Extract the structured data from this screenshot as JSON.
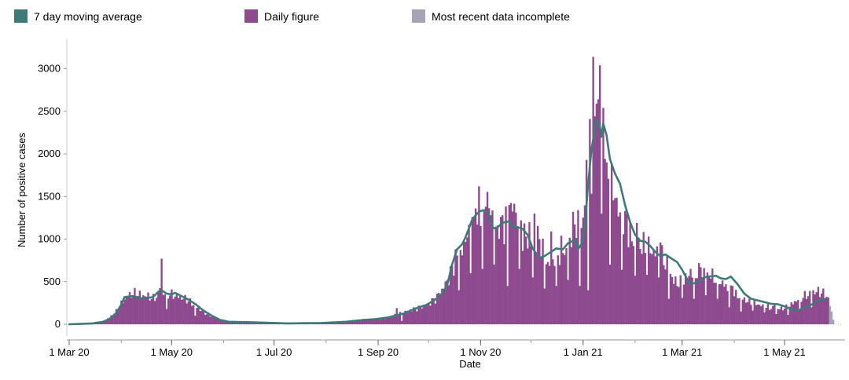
{
  "legend": {
    "items": [
      {
        "label": "7 day moving average",
        "color": "#3e7b78"
      },
      {
        "label": "Daily figure",
        "color": "#8e4a8e"
      },
      {
        "label": "Most recent data incomplete",
        "color": "#a7a4b3"
      }
    ]
  },
  "chart_data": {
    "type": "bar",
    "xlabel": "Date",
    "ylabel": "Number of positive cases",
    "ylim": [
      0,
      3300
    ],
    "yticks": [
      0,
      500,
      1000,
      1500,
      2000,
      2500,
      3000
    ],
    "xtick_labels": [
      "1 Mar 20",
      "1 May 20",
      "1 Jul 20",
      "1 Sep 20",
      "1 Nov 20",
      "1 Jan 21",
      "1 Mar 21",
      "1 May 21"
    ],
    "day_range": [
      0,
      455
    ],
    "incomplete_days": 3,
    "series": [
      {
        "name": "Daily figure",
        "keypoints": [
          [
            0,
            2
          ],
          [
            8,
            8
          ],
          [
            14,
            15
          ],
          [
            20,
            30
          ],
          [
            24,
            80
          ],
          [
            28,
            150
          ],
          [
            31,
            240
          ],
          [
            34,
            320
          ],
          [
            37,
            350
          ],
          [
            40,
            360
          ],
          [
            43,
            340
          ],
          [
            47,
            330
          ],
          [
            50,
            300
          ],
          [
            53,
            340
          ],
          [
            55,
            560
          ],
          [
            56,
            360
          ],
          [
            60,
            350
          ],
          [
            64,
            330
          ],
          [
            70,
            290
          ],
          [
            76,
            200
          ],
          [
            82,
            120
          ],
          [
            88,
            60
          ],
          [
            95,
            30
          ],
          [
            110,
            15
          ],
          [
            130,
            10
          ],
          [
            150,
            15
          ],
          [
            165,
            30
          ],
          [
            175,
            50
          ],
          [
            182,
            60
          ],
          [
            190,
            80
          ],
          [
            195,
            120
          ],
          [
            200,
            150
          ],
          [
            207,
            190
          ],
          [
            213,
            230
          ],
          [
            218,
            300
          ],
          [
            222,
            400
          ],
          [
            226,
            550
          ],
          [
            230,
            750
          ],
          [
            235,
            900
          ],
          [
            240,
            1100
          ],
          [
            244,
            1250
          ],
          [
            249,
            1350
          ],
          [
            254,
            1150
          ],
          [
            258,
            1100
          ],
          [
            262,
            1300
          ],
          [
            266,
            1400
          ],
          [
            270,
            1050
          ],
          [
            275,
            950
          ],
          [
            280,
            1000
          ],
          [
            285,
            700
          ],
          [
            289,
            800
          ],
          [
            295,
            850
          ],
          [
            300,
            950
          ],
          [
            305,
            1150
          ],
          [
            308,
            1500
          ],
          [
            311,
            1800
          ],
          [
            313,
            2500
          ],
          [
            315,
            2400
          ],
          [
            318,
            2300
          ],
          [
            321,
            1800
          ],
          [
            324,
            1500
          ],
          [
            328,
            1250
          ],
          [
            333,
            1050
          ],
          [
            338,
            950
          ],
          [
            343,
            900
          ],
          [
            348,
            850
          ],
          [
            352,
            800
          ],
          [
            356,
            700
          ],
          [
            360,
            500
          ],
          [
            364,
            480
          ],
          [
            368,
            550
          ],
          [
            373,
            600
          ],
          [
            378,
            600
          ],
          [
            383,
            560
          ],
          [
            388,
            500
          ],
          [
            393,
            400
          ],
          [
            398,
            330
          ],
          [
            403,
            280
          ],
          [
            408,
            250
          ],
          [
            413,
            210
          ],
          [
            418,
            190
          ],
          [
            423,
            180
          ],
          [
            428,
            200
          ],
          [
            433,
            280
          ],
          [
            438,
            330
          ],
          [
            443,
            380
          ],
          [
            447,
            380
          ],
          [
            450,
            350
          ],
          [
            452,
            300
          ],
          [
            455,
            60
          ]
        ],
        "spikes": [
          [
            55,
            770
          ],
          [
            195,
            190
          ],
          [
            225,
            520
          ],
          [
            230,
            880
          ],
          [
            237,
            1020
          ],
          [
            240,
            1260
          ],
          [
            242,
            1360
          ],
          [
            244,
            1620
          ],
          [
            246,
            1680
          ],
          [
            248,
            1380
          ],
          [
            251,
            1280
          ],
          [
            258,
            1280
          ],
          [
            262,
            1400
          ],
          [
            266,
            1310
          ],
          [
            269,
            1220
          ],
          [
            274,
            1200
          ],
          [
            277,
            1300
          ],
          [
            287,
            1090
          ],
          [
            293,
            1040
          ],
          [
            300,
            1320
          ],
          [
            303,
            1340
          ],
          [
            308,
            1930
          ],
          [
            310,
            2410
          ],
          [
            312,
            3140
          ],
          [
            314,
            2590
          ],
          [
            316,
            3040
          ],
          [
            318,
            2540
          ],
          [
            320,
            1900
          ],
          [
            325,
            1480
          ],
          [
            332,
            1300
          ],
          [
            338,
            1190
          ],
          [
            345,
            1030
          ],
          [
            352,
            960
          ],
          [
            370,
            650
          ],
          [
            376,
            670
          ],
          [
            386,
            630
          ],
          [
            395,
            450
          ],
          [
            405,
            300
          ],
          [
            420,
            240
          ],
          [
            440,
            330
          ],
          [
            449,
            420
          ]
        ],
        "dips": [
          [
            58,
            180
          ],
          [
            75,
            100
          ],
          [
            198,
            40
          ],
          [
            232,
            400
          ],
          [
            239,
            600
          ],
          [
            246,
            650
          ],
          [
            253,
            700
          ],
          [
            261,
            450
          ],
          [
            268,
            650
          ],
          [
            276,
            550
          ],
          [
            283,
            420
          ],
          [
            290,
            450
          ],
          [
            297,
            520
          ],
          [
            304,
            450
          ],
          [
            309,
            400
          ],
          [
            317,
            1300
          ],
          [
            322,
            700
          ],
          [
            329,
            640
          ],
          [
            337,
            570
          ],
          [
            344,
            580
          ],
          [
            351,
            550
          ],
          [
            357,
            300
          ],
          [
            365,
            310
          ],
          [
            372,
            300
          ],
          [
            379,
            340
          ],
          [
            386,
            300
          ],
          [
            393,
            200
          ],
          [
            400,
            150
          ],
          [
            407,
            160
          ],
          [
            414,
            140
          ],
          [
            421,
            120
          ],
          [
            428,
            110
          ],
          [
            435,
            170
          ],
          [
            442,
            200
          ]
        ]
      },
      {
        "name": "7 day moving average",
        "points": [
          [
            0,
            0
          ],
          [
            8,
            5
          ],
          [
            14,
            10
          ],
          [
            20,
            28
          ],
          [
            24,
            60
          ],
          [
            28,
            130
          ],
          [
            31,
            230
          ],
          [
            33,
            320
          ],
          [
            38,
            330
          ],
          [
            43,
            305
          ],
          [
            47,
            310
          ],
          [
            50,
            320
          ],
          [
            53,
            380
          ],
          [
            55,
            400
          ],
          [
            58,
            360
          ],
          [
            61,
            350
          ],
          [
            63,
            370
          ],
          [
            66,
            340
          ],
          [
            70,
            300
          ],
          [
            75,
            240
          ],
          [
            80,
            160
          ],
          [
            85,
            100
          ],
          [
            90,
            50
          ],
          [
            95,
            30
          ],
          [
            110,
            22
          ],
          [
            130,
            10
          ],
          [
            150,
            15
          ],
          [
            165,
            30
          ],
          [
            175,
            50
          ],
          [
            182,
            60
          ],
          [
            190,
            80
          ],
          [
            200,
            130
          ],
          [
            207,
            190
          ],
          [
            213,
            230
          ],
          [
            218,
            290
          ],
          [
            222,
            360
          ],
          [
            225,
            450
          ],
          [
            228,
            700
          ],
          [
            231,
            880
          ],
          [
            234,
            940
          ],
          [
            236,
            1020
          ],
          [
            240,
            1230
          ],
          [
            243,
            1300
          ],
          [
            245,
            1330
          ],
          [
            247,
            1340
          ],
          [
            250,
            1290
          ],
          [
            252,
            1140
          ],
          [
            254,
            1120
          ],
          [
            258,
            1190
          ],
          [
            262,
            1210
          ],
          [
            264,
            1140
          ],
          [
            267,
            1140
          ],
          [
            270,
            1120
          ],
          [
            273,
            1050
          ],
          [
            276,
            890
          ],
          [
            280,
            780
          ],
          [
            283,
            800
          ],
          [
            287,
            850
          ],
          [
            290,
            890
          ],
          [
            294,
            880
          ],
          [
            297,
            950
          ],
          [
            300,
            980
          ],
          [
            301,
            1000
          ],
          [
            303,
            880
          ],
          [
            305,
            940
          ],
          [
            307,
            1130
          ],
          [
            309,
            1640
          ],
          [
            311,
            2050
          ],
          [
            313,
            2280
          ],
          [
            314,
            2400
          ],
          [
            316,
            2320
          ],
          [
            317,
            2200
          ],
          [
            318,
            2360
          ],
          [
            320,
            2220
          ],
          [
            322,
            1940
          ],
          [
            325,
            1770
          ],
          [
            328,
            1650
          ],
          [
            331,
            1400
          ],
          [
            334,
            1200
          ],
          [
            337,
            1050
          ],
          [
            340,
            980
          ],
          [
            343,
            970
          ],
          [
            346,
            920
          ],
          [
            349,
            850
          ],
          [
            352,
            800
          ],
          [
            355,
            820
          ],
          [
            358,
            780
          ],
          [
            362,
            730
          ],
          [
            365,
            640
          ],
          [
            369,
            490
          ],
          [
            372,
            480
          ],
          [
            375,
            500
          ],
          [
            378,
            550
          ],
          [
            381,
            560
          ],
          [
            385,
            570
          ],
          [
            388,
            540
          ],
          [
            391,
            530
          ],
          [
            394,
            560
          ],
          [
            398,
            470
          ],
          [
            402,
            360
          ],
          [
            406,
            300
          ],
          [
            410,
            280
          ],
          [
            414,
            260
          ],
          [
            418,
            240
          ],
          [
            422,
            235
          ],
          [
            426,
            210
          ],
          [
            430,
            175
          ],
          [
            434,
            160
          ],
          [
            438,
            200
          ],
          [
            442,
            230
          ],
          [
            446,
            280
          ],
          [
            450,
            290
          ]
        ]
      }
    ]
  }
}
